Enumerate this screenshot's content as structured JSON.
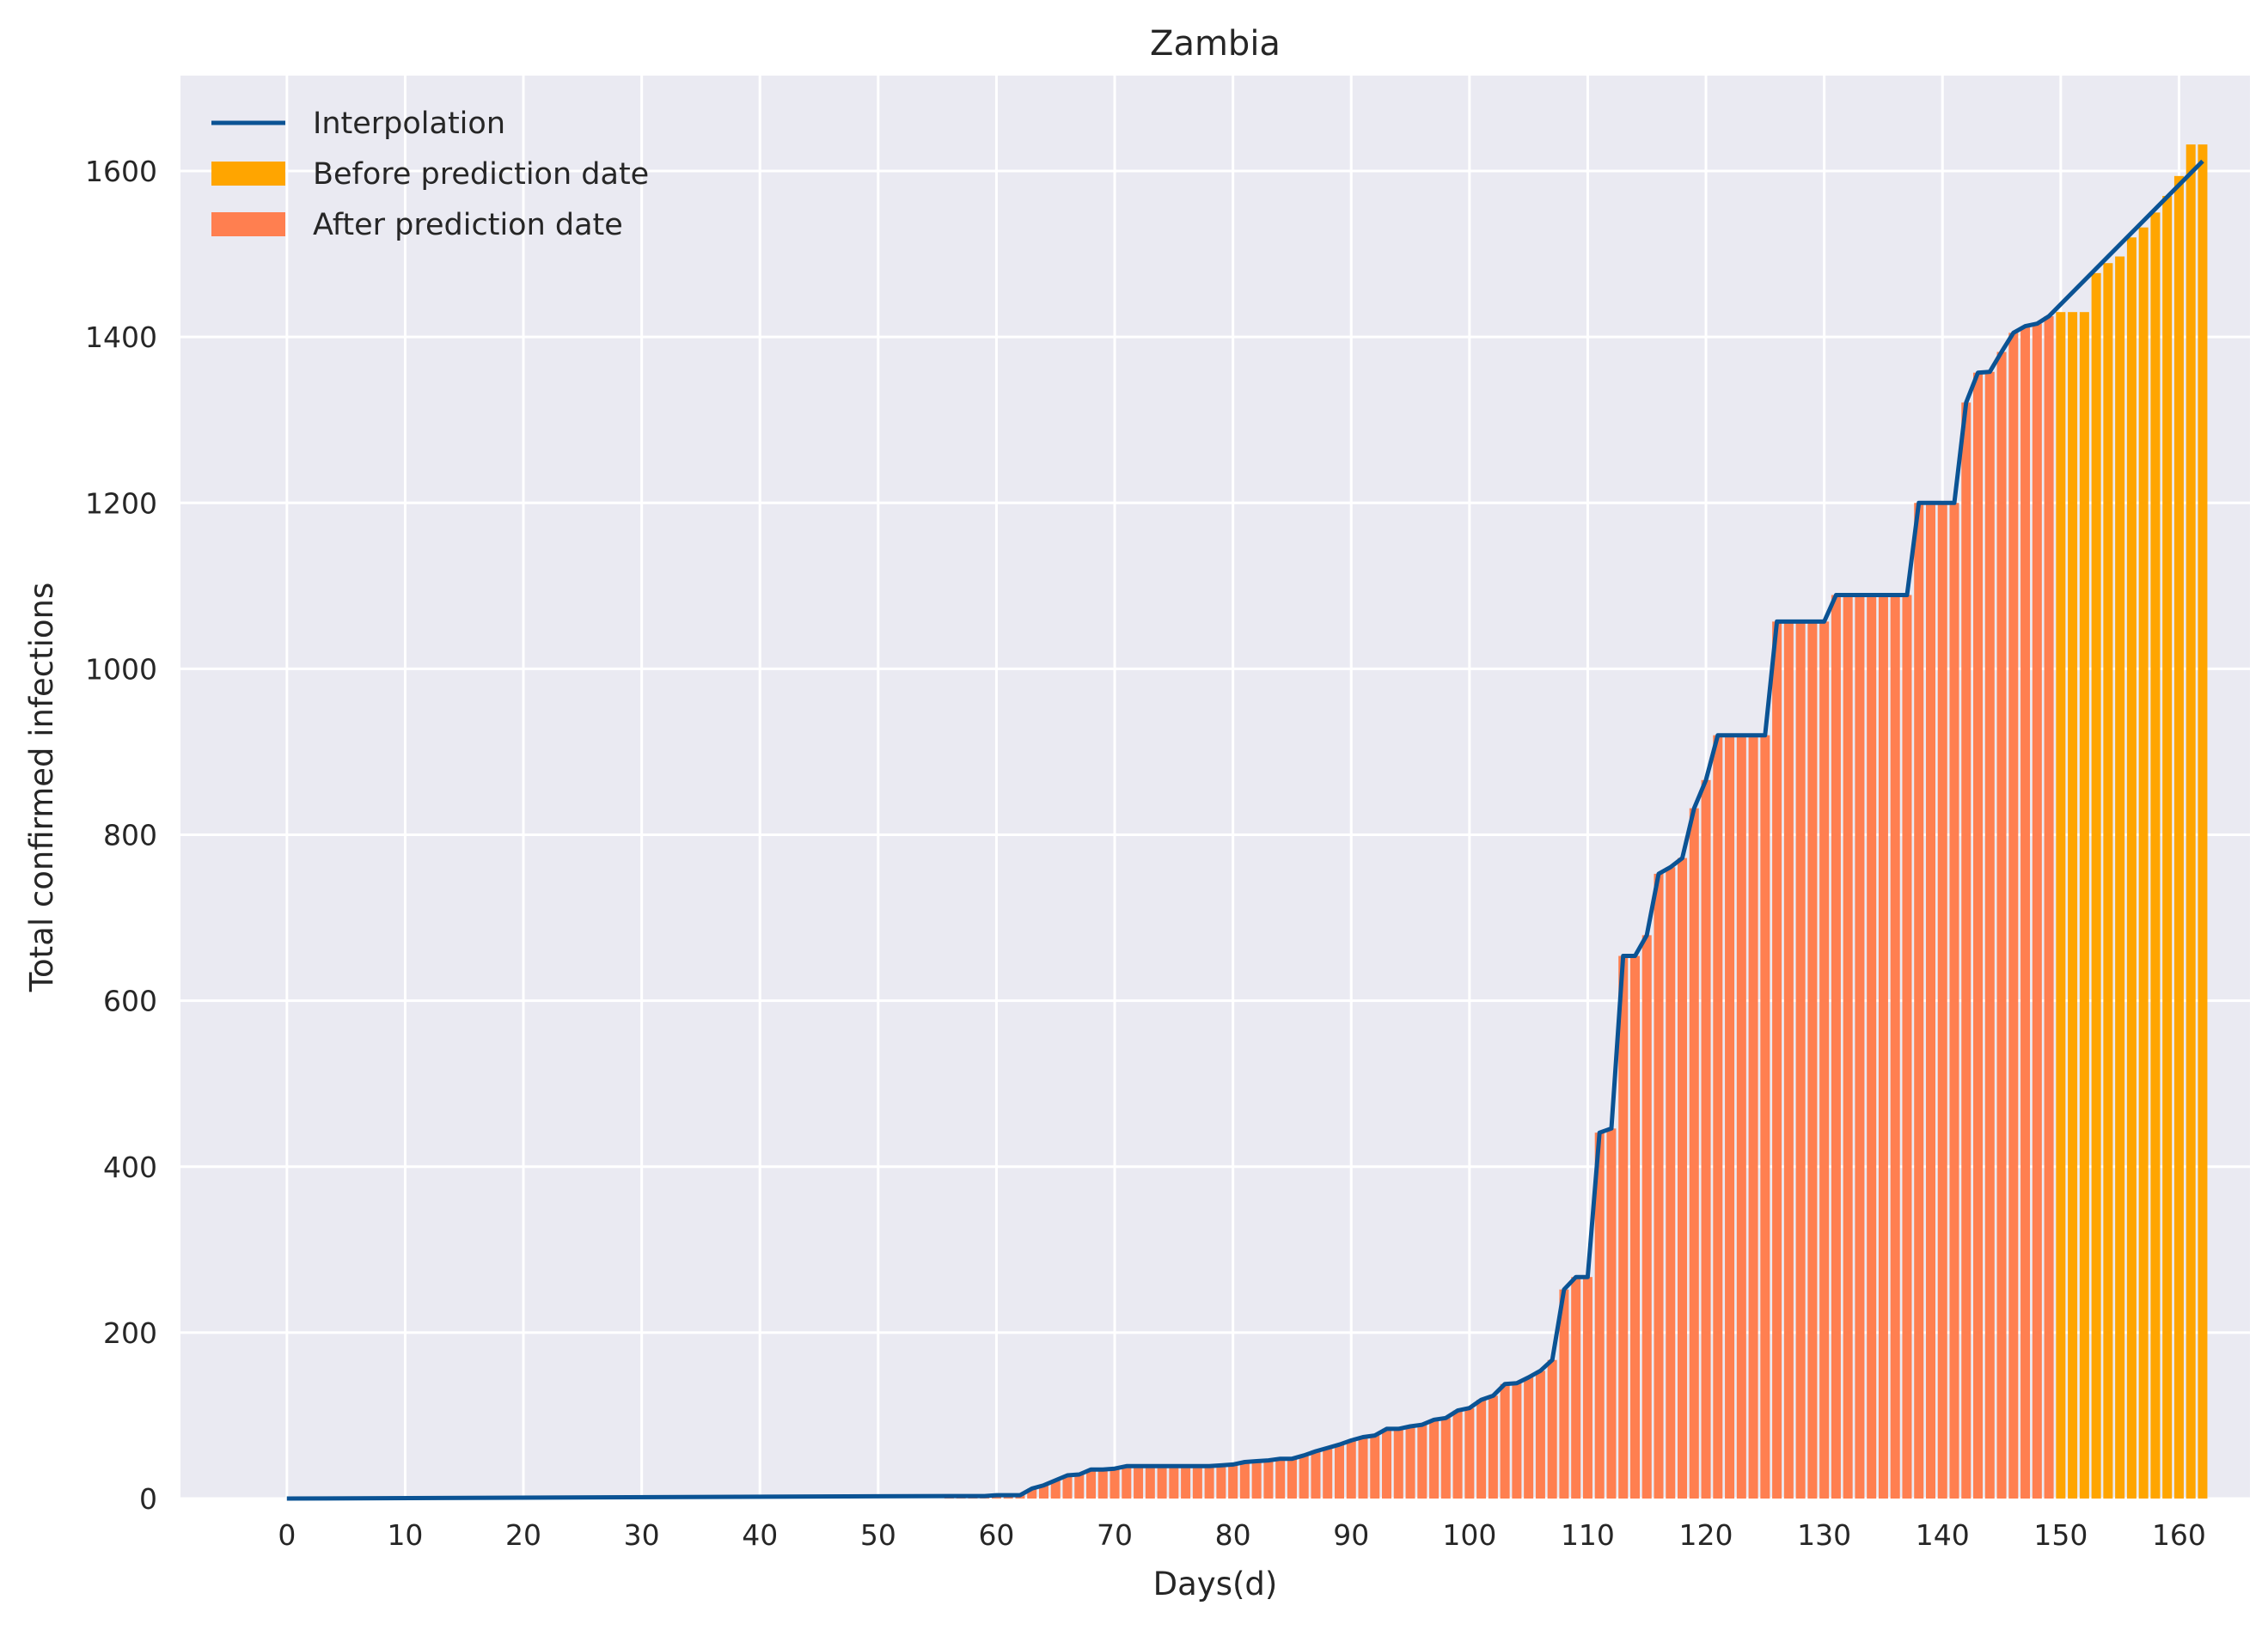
{
  "chart_data": {
    "type": "bar",
    "title": "Zambia",
    "xlabel": "Days(d)",
    "ylabel": "Total confirmed infections",
    "xlim": [
      -9,
      166
    ],
    "ylim": [
      0,
      1715
    ],
    "xticks": [
      0,
      10,
      20,
      30,
      40,
      50,
      60,
      70,
      80,
      90,
      100,
      110,
      120,
      130,
      140,
      150,
      160
    ],
    "yticks": [
      0,
      200,
      400,
      600,
      800,
      1000,
      1200,
      1400,
      1600
    ],
    "grid": true,
    "legend_position": "top-left",
    "legend": [
      "Interpolation",
      "Before prediction date",
      "After prediction date"
    ],
    "colors": {
      "background": "#eaeaf2",
      "grid": "#ffffff",
      "line": "#0b5394",
      "before": "#ffa500",
      "after": "#ff7f50"
    },
    "series": [
      {
        "name": "After prediction date",
        "kind": "bar",
        "x": [
          56,
          57,
          58,
          59,
          60,
          61,
          62,
          63,
          64,
          65,
          66,
          67,
          68,
          69,
          70,
          71,
          72,
          73,
          74,
          75,
          76,
          77,
          78,
          79,
          80,
          81,
          82,
          83,
          84,
          85,
          86,
          87,
          88,
          89,
          90,
          91,
          92,
          93,
          94,
          95,
          96,
          97,
          98,
          99,
          100,
          101,
          102,
          103,
          104,
          105,
          106,
          107,
          108,
          109,
          110,
          111,
          112,
          113,
          114,
          115,
          116,
          117,
          118,
          119,
          120,
          121,
          122,
          123,
          124,
          125,
          126,
          127,
          128,
          129,
          130,
          131,
          132,
          133,
          134,
          135,
          136,
          137,
          138,
          139,
          140,
          141,
          142,
          143,
          144,
          145,
          146,
          147,
          148,
          149
        ],
        "values": [
          3,
          3,
          3,
          3,
          4,
          4,
          4,
          12,
          16,
          22,
          28,
          29,
          35,
          35,
          36,
          39,
          39,
          39,
          39,
          39,
          39,
          39,
          39,
          40,
          41,
          44,
          45,
          46,
          48,
          48,
          52,
          57,
          61,
          65,
          70,
          74,
          76,
          84,
          84,
          87,
          89,
          95,
          97,
          106,
          109,
          119,
          124,
          138,
          139,
          146,
          154,
          167,
          252,
          267,
          267,
          441,
          446,
          654,
          654,
          679,
          753,
          761,
          772,
          832,
          866,
          920,
          920,
          920,
          920,
          920,
          1057,
          1057,
          1057,
          1057,
          1057,
          1089,
          1089,
          1089,
          1089,
          1089,
          1089,
          1089,
          1200,
          1200,
          1200,
          1200,
          1321,
          1357,
          1358,
          1382,
          1405,
          1413,
          1416,
          1425
        ]
      },
      {
        "name": "Before prediction date",
        "kind": "bar",
        "x": [
          150,
          151,
          152,
          153,
          154,
          155,
          156,
          157,
          158,
          159,
          160,
          161,
          162
        ],
        "values": [
          1430,
          1430,
          1430,
          1477,
          1489,
          1497,
          1520,
          1532,
          1550,
          1570,
          1594,
          1632,
          1632
        ]
      },
      {
        "name": "Interpolation",
        "kind": "line",
        "x": [
          0,
          56,
          57,
          58,
          59,
          60,
          61,
          62,
          63,
          64,
          65,
          66,
          67,
          68,
          69,
          70,
          71,
          72,
          73,
          74,
          75,
          76,
          77,
          78,
          79,
          80,
          81,
          82,
          83,
          84,
          85,
          86,
          87,
          88,
          89,
          90,
          91,
          92,
          93,
          94,
          95,
          96,
          97,
          98,
          99,
          100,
          101,
          102,
          103,
          104,
          105,
          106,
          107,
          108,
          109,
          110,
          111,
          112,
          113,
          114,
          115,
          116,
          117,
          118,
          119,
          120,
          121,
          122,
          123,
          124,
          125,
          126,
          127,
          128,
          129,
          130,
          131,
          132,
          133,
          134,
          135,
          136,
          137,
          138,
          139,
          140,
          141,
          142,
          143,
          144,
          145,
          146,
          147,
          148,
          149,
          162
        ],
        "values": [
          0,
          3,
          3,
          3,
          3,
          4,
          4,
          4,
          12,
          16,
          22,
          28,
          29,
          35,
          35,
          36,
          39,
          39,
          39,
          39,
          39,
          39,
          39,
          39,
          40,
          41,
          44,
          45,
          46,
          48,
          48,
          52,
          57,
          61,
          65,
          70,
          74,
          76,
          84,
          84,
          87,
          89,
          95,
          97,
          106,
          109,
          119,
          124,
          138,
          139,
          146,
          154,
          167,
          252,
          267,
          267,
          441,
          446,
          654,
          654,
          679,
          753,
          761,
          772,
          832,
          866,
          920,
          920,
          920,
          920,
          920,
          1057,
          1057,
          1057,
          1057,
          1057,
          1089,
          1089,
          1089,
          1089,
          1089,
          1089,
          1089,
          1200,
          1200,
          1200,
          1200,
          1321,
          1357,
          1358,
          1382,
          1405,
          1413,
          1416,
          1425,
          1612
        ]
      }
    ]
  }
}
